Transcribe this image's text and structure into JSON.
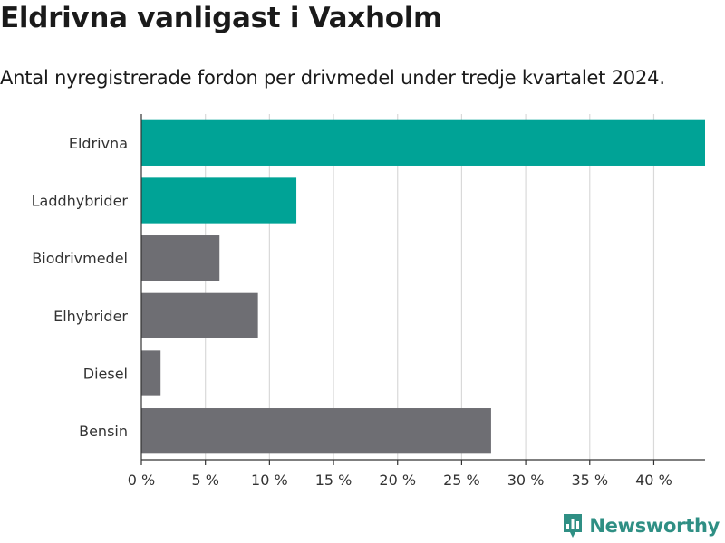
{
  "header": {
    "title": "Eldrivna vanligast i Vaxholm",
    "subtitle": "Antal nyregistrerade fordon per drivmedel under tredje kvartalet 2024."
  },
  "brand": {
    "name": "Newsworthy",
    "icon": "bar-chart-pin-icon",
    "color": "#2f8f84"
  },
  "chart_data": {
    "type": "bar",
    "orientation": "horizontal",
    "title": "Eldrivna vanligast i Vaxholm",
    "subtitle": "Antal nyregistrerade fordon per drivmedel under tredje kvartalet 2024.",
    "xlabel": "",
    "ylabel": "",
    "categories": [
      "Eldrivna",
      "Laddhybrider",
      "Biodrivmedel",
      "Elhybrider",
      "Diesel",
      "Bensin"
    ],
    "values": [
      44,
      12.1,
      6.1,
      9.1,
      1.5,
      27.3
    ],
    "colors": [
      "#00a396",
      "#00a396",
      "#6e6e73",
      "#6e6e73",
      "#6e6e73",
      "#6e6e73"
    ],
    "xlim": [
      0,
      44
    ],
    "xticks": [
      0,
      5,
      10,
      15,
      20,
      25,
      30,
      35,
      40
    ],
    "tick_labels": [
      "0 %",
      "5 %",
      "10 %",
      "15 %",
      "20 %",
      "25 %",
      "30 %",
      "35 %",
      "40 %"
    ],
    "grid": true,
    "legend": "none"
  }
}
